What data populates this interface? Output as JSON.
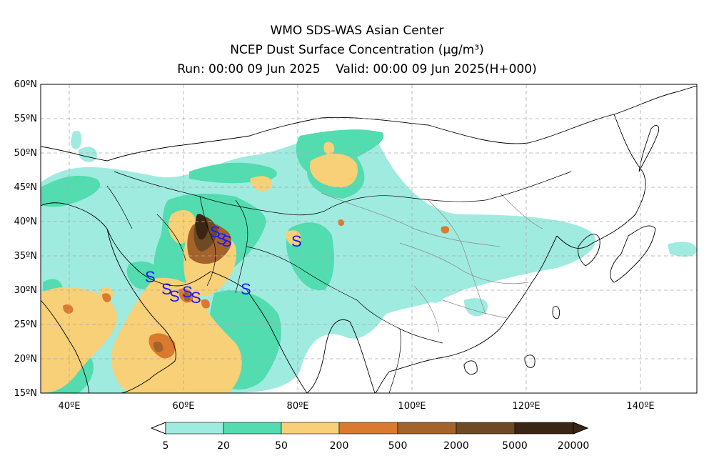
{
  "header": {
    "line1": "WMO SDS-WAS Asian Center",
    "line2": "NCEP Dust Surface Concentration (μg/m³)",
    "line3": "Run: 00:00 09 Jun 2025    Valid: 00:00 09 Jun 2025(H+000)"
  },
  "map": {
    "lon_range": [
      35,
      150
    ],
    "lat_range": [
      15,
      60
    ],
    "lat_ticks": [
      "60ºN",
      "55ºN",
      "50ºN",
      "45ºN",
      "40ºN",
      "35ºN",
      "30ºN",
      "25ºN",
      "20ºN",
      "15ºN"
    ],
    "lon_ticks": [
      "40ºE",
      "60ºE",
      "80ºE",
      "100ºE",
      "120ºE",
      "140ºE"
    ],
    "gridlines": true,
    "storm_symbol": "S",
    "storm_symbol_color": "#1a1aff"
  },
  "colorbar": {
    "labels": [
      "5",
      "20",
      "50",
      "200",
      "500",
      "2000",
      "5000",
      "20000"
    ],
    "colors": [
      "#a0ebe0",
      "#52dcb0",
      "#f7d078",
      "#d97a2e",
      "#a3632b",
      "#6e4a24",
      "#3a2613"
    ]
  }
}
